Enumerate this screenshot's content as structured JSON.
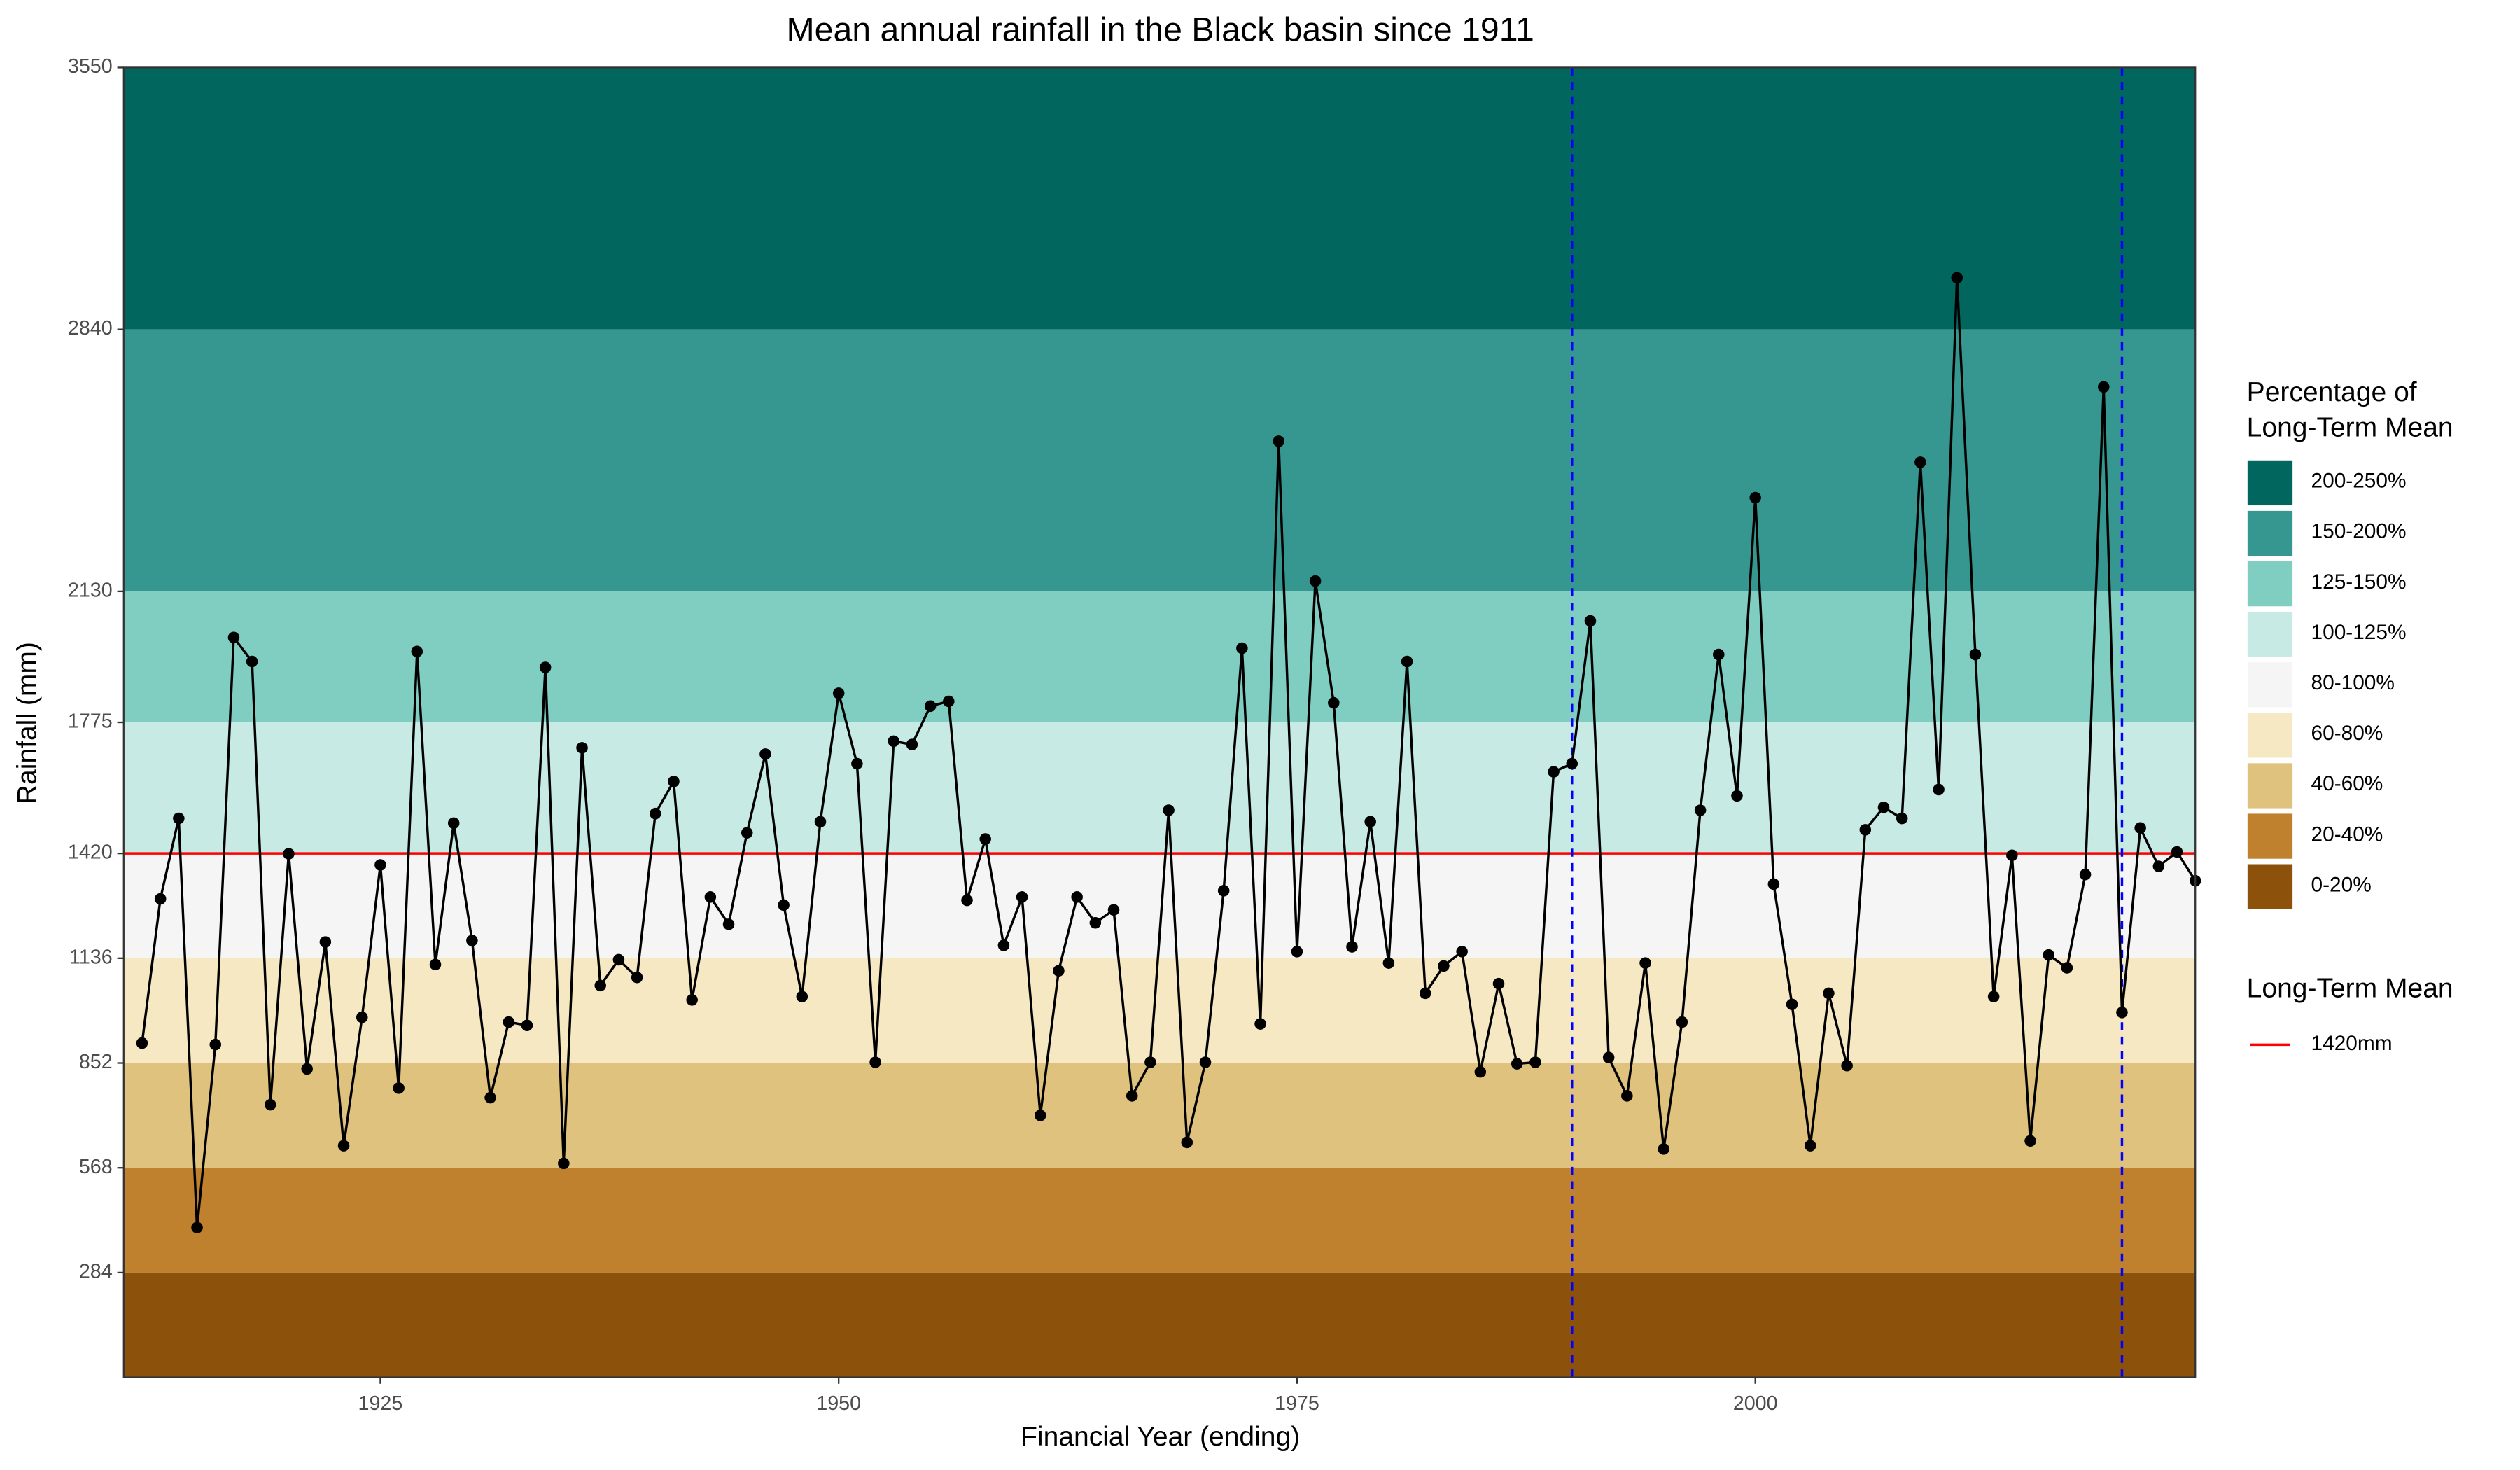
{
  "chart_data": {
    "type": "line",
    "title": "Mean annual rainfall in the Black basin since 1911",
    "x_label": "Financial Year (ending)",
    "y_label": "Rainfall (mm)",
    "x": [
      1912,
      1913,
      1914,
      1915,
      1916,
      1917,
      1918,
      1919,
      1920,
      1921,
      1922,
      1923,
      1924,
      1925,
      1926,
      1927,
      1928,
      1929,
      1930,
      1931,
      1932,
      1933,
      1934,
      1935,
      1936,
      1937,
      1938,
      1939,
      1940,
      1941,
      1942,
      1943,
      1944,
      1945,
      1946,
      1947,
      1948,
      1949,
      1950,
      1951,
      1952,
      1953,
      1954,
      1955,
      1956,
      1957,
      1958,
      1959,
      1960,
      1961,
      1962,
      1963,
      1964,
      1965,
      1966,
      1967,
      1968,
      1969,
      1970,
      1971,
      1972,
      1973,
      1974,
      1975,
      1976,
      1977,
      1978,
      1979,
      1980,
      1981,
      1982,
      1983,
      1984,
      1985,
      1986,
      1987,
      1988,
      1989,
      1990,
      1991,
      1992,
      1993,
      1994,
      1995,
      1996,
      1997,
      1998,
      1999,
      2000,
      2001,
      2002,
      2003,
      2004,
      2005,
      2006,
      2007,
      2008,
      2009,
      2010,
      2011,
      2012,
      2013,
      2014,
      2015,
      2016,
      2017,
      2018,
      2019,
      2020,
      2021,
      2022,
      2023,
      2024
    ],
    "values": [
      906,
      1297,
      1515,
      406,
      902,
      2005,
      1940,
      739,
      1419,
      836,
      1180,
      628,
      976,
      1389,
      784,
      1967,
      1119,
      1502,
      1184,
      758,
      963,
      954,
      1924,
      580,
      1706,
      1062,
      1132,
      1084,
      1528,
      1615,
      1023,
      1302,
      1228,
      1476,
      1689,
      1280,
      1032,
      1506,
      1854,
      1663,
      854,
      1724,
      1715,
      1819,
      1832,
      1293,
      1459,
      1171,
      1302,
      710,
      1102,
      1302,
      1232,
      1267,
      763,
      854,
      1537,
      637,
      854,
      1319,
      1976,
      958,
      2537,
      1154,
      2158,
      1828,
      1167,
      1506,
      1123,
      1940,
      1041,
      1115,
      1154,
      828,
      1067,
      850,
      854,
      1641,
      1663,
      2050,
      867,
      763,
      1123,
      619,
      963,
      1537,
      1959,
      1576,
      2384,
      1337,
      1011,
      628,
      1041,
      845,
      1484,
      1545,
      1515,
      2480,
      1593,
      2980,
      1959,
      1032,
      1415,
      641,
      1145,
      1110,
      1363,
      2684,
      989,
      1489,
      1385,
      1424,
      1346
    ],
    "color": "#000000",
    "xlim": [
      1911,
      2024
    ],
    "ylim": [
      0,
      3550
    ],
    "xticks": [
      1925,
      1950,
      1975,
      2000
    ],
    "yticks": [
      284,
      568,
      852,
      1136,
      1420,
      1775,
      2130,
      2840,
      3550
    ],
    "bands_legend_title": [
      "Percentage of",
      "Long-Term Mean"
    ],
    "bands": [
      {
        "label": "200-250%",
        "color": "#01665e",
        "range": [
          2840,
          3550
        ]
      },
      {
        "label": "150-200%",
        "color": "#35978f",
        "range": [
          2130,
          2840
        ]
      },
      {
        "label": "125-150%",
        "color": "#80cdc1",
        "range": [
          1775,
          2130
        ]
      },
      {
        "label": "100-125%",
        "color": "#c7eae5",
        "range": [
          1420,
          1775
        ]
      },
      {
        "label": "80-100%",
        "color": "#f5f5f5",
        "range": [
          1136,
          1420
        ]
      },
      {
        "label": "60-80%",
        "color": "#f6e8c3",
        "range": [
          852,
          1136
        ]
      },
      {
        "label": "40-60%",
        "color": "#dfc27d",
        "range": [
          568,
          852
        ]
      },
      {
        "label": "20-40%",
        "color": "#bf812d",
        "range": [
          284,
          568
        ]
      },
      {
        "label": "0-20%",
        "color": "#8c510a",
        "range": [
          0,
          284
        ]
      }
    ],
    "mean_line": {
      "legend_title": "Long-Term Mean",
      "value": 1420,
      "label": "1420mm",
      "color": "#ff0000"
    },
    "vlines": {
      "values": [
        1990,
        2020
      ],
      "color": "#0000ff"
    }
  }
}
